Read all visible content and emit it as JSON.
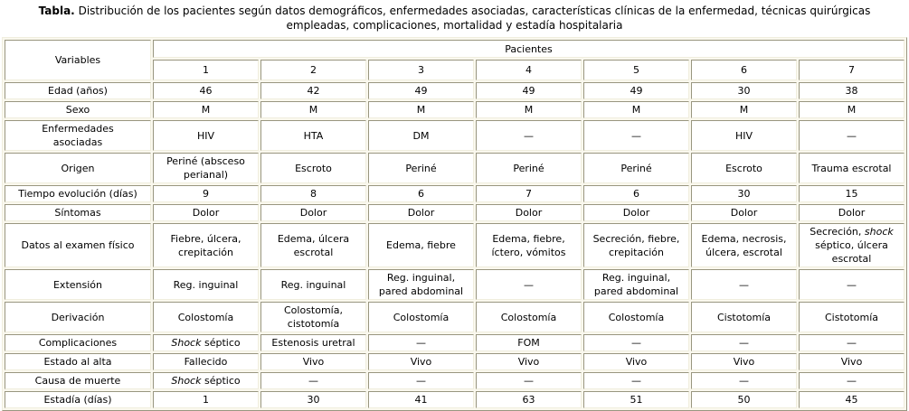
{
  "caption": {
    "label": "Tabla.",
    "text": "Distribución de los pacientes según datos demográficos, enfermedades asociadas, características clínicas de la enfermedad, técnicas quirúrgicas empleadas, complicaciones, mortalidad y estadía hospitalaria"
  },
  "colors": {
    "cell_background": "#ffffff",
    "border_dark": "#999680",
    "border_light": "#f0eede",
    "grid_gap": "#faf8ee",
    "text": "#000000"
  },
  "table": {
    "corner_label": "Variables",
    "group_label": "Pacientes",
    "patient_numbers": [
      "1",
      "2",
      "3",
      "4",
      "5",
      "6",
      "7"
    ],
    "rows": [
      {
        "label": "Edad (años)",
        "values": [
          "46",
          "42",
          "49",
          "49",
          "49",
          "30",
          "38"
        ]
      },
      {
        "label": "Sexo",
        "values": [
          "M",
          "M",
          "M",
          "M",
          "M",
          "M",
          "M"
        ]
      },
      {
        "label": "Enfermedades\nasociadas",
        "values": [
          "HIV",
          "HTA",
          "DM",
          "—",
          "—",
          "HIV",
          "—"
        ]
      },
      {
        "label": "Origen",
        "values": [
          "Periné (absceso perianal)",
          "Escroto",
          "Periné",
          "Periné",
          "Periné",
          "Escroto",
          "Trauma escrotal"
        ]
      },
      {
        "label": "Tiempo evolución (días)",
        "values": [
          "9",
          "8",
          "6",
          "7",
          "6",
          "30",
          "15"
        ]
      },
      {
        "label": "Síntomas",
        "values": [
          "Dolor",
          "Dolor",
          "Dolor",
          "Dolor",
          "Dolor",
          "Dolor",
          "Dolor"
        ]
      },
      {
        "label": "Datos al examen físico",
        "values": [
          "Fiebre, úlcera, crepitación",
          "Edema, úlcera escrotal",
          "Edema, fiebre",
          "Edema, fiebre, íctero, vómitos",
          "Secreción, fiebre, crepitación",
          "Edema, necrosis, úlcera, escrotal",
          "Secreción, *shock* séptico, úlcera escrotal"
        ]
      },
      {
        "label": "Extensión",
        "values": [
          "Reg. inguinal",
          "Reg. inguinal",
          "Reg. inguinal, pared abdominal",
          "—",
          "Reg. inguinal, pared abdominal",
          "—",
          "—"
        ]
      },
      {
        "label": "Derivación",
        "values": [
          "Colostomía",
          "Colostomía, cistotomía",
          "Colostomía",
          "Colostomía",
          "Colostomía",
          "Cistotomía",
          "Cistotomía"
        ]
      },
      {
        "label": "Complicaciones",
        "values": [
          "*Shock* séptico",
          "Estenosis uretral",
          "—",
          "FOM",
          "—",
          "—",
          "—"
        ]
      },
      {
        "label": "Estado al alta",
        "values": [
          "Fallecido",
          "Vivo",
          "Vivo",
          "Vivo",
          "Vivo",
          "Vivo",
          "Vivo"
        ]
      },
      {
        "label": "Causa de muerte",
        "values": [
          "*Shock* séptico",
          "—",
          "—",
          "—",
          "—",
          "—",
          "—"
        ]
      },
      {
        "label": "Estadía (días)",
        "values": [
          "1",
          "30",
          "41",
          "63",
          "51",
          "50",
          "45"
        ]
      }
    ]
  }
}
